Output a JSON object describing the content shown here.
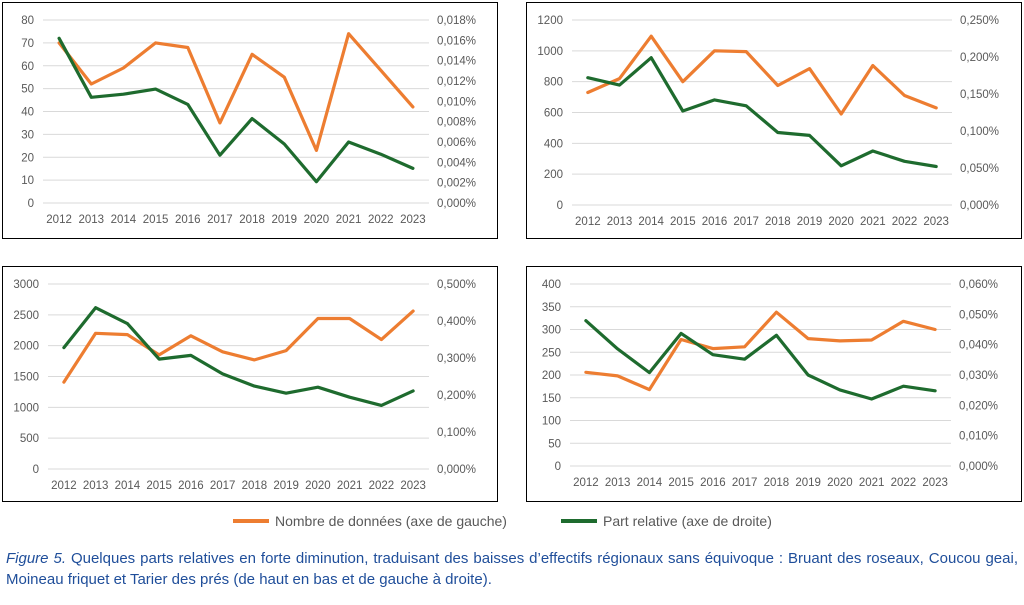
{
  "colors": {
    "series_left": "#ed7d31",
    "series_right": "#1e6b2e",
    "grid": "#d9d9d9",
    "tick": "#595959",
    "caption": "#1f4e9a"
  },
  "legend": {
    "left_label": "Nombre de données (axe de gauche)",
    "right_label": "Part relative (axe de droite)"
  },
  "caption": {
    "figure_label": "Figure 5.",
    "text": " Quelques parts relatives en forte diminution, traduisant des baisses d’effectifs régionaux sans équivoque : Bruant des roseaux, Coucou geai, Moineau friquet et Tarier des prés (de haut en bas et de gauche à droite)."
  },
  "chart_data": [
    {
      "type": "line",
      "x": [
        "2012",
        "2013",
        "2014",
        "2015",
        "2016",
        "2017",
        "2018",
        "2019",
        "2020",
        "2021",
        "2022",
        "2023"
      ],
      "series": [
        {
          "name": "Nombre de données (axe de gauche)",
          "axis": "left",
          "values": [
            70,
            52,
            59,
            70,
            68,
            35,
            65,
            55,
            23,
            74,
            58,
            42
          ]
        },
        {
          "name": "Part relative (axe de droite)",
          "axis": "right",
          "values": [
            0.0162,
            0.0104,
            0.0107,
            0.0112,
            0.0097,
            0.0047,
            0.0083,
            0.0058,
            0.0021,
            0.006,
            0.0048,
            0.0034
          ]
        }
      ],
      "ylim_left": [
        0,
        80
      ],
      "yticks_left": [
        "0",
        "10",
        "20",
        "30",
        "40",
        "50",
        "60",
        "70",
        "80"
      ],
      "ylim_right": [
        0,
        0.018
      ],
      "yticks_right": [
        "0,000%",
        "0,002%",
        "0,004%",
        "0,006%",
        "0,008%",
        "0,010%",
        "0,012%",
        "0,014%",
        "0,016%",
        "0,018%"
      ],
      "grid": true
    },
    {
      "type": "line",
      "x": [
        "2012",
        "2013",
        "2014",
        "2015",
        "2016",
        "2017",
        "2018",
        "2019",
        "2020",
        "2021",
        "2022",
        "2023"
      ],
      "series": [
        {
          "name": "Nombre de données (axe de gauche)",
          "axis": "left",
          "values": [
            730,
            820,
            1095,
            800,
            1000,
            995,
            775,
            885,
            590,
            905,
            710,
            630
          ]
        },
        {
          "name": "Part relative (axe de droite)",
          "axis": "right",
          "values": [
            0.172,
            0.162,
            0.199,
            0.127,
            0.142,
            0.134,
            0.098,
            0.094,
            0.053,
            0.073,
            0.059,
            0.052
          ]
        }
      ],
      "ylim_left": [
        0,
        1200
      ],
      "yticks_left": [
        "0",
        "200",
        "400",
        "600",
        "800",
        "1000",
        "1200"
      ],
      "ylim_right": [
        0,
        0.25
      ],
      "yticks_right": [
        "0,000%",
        "0,050%",
        "0,100%",
        "0,150%",
        "0,200%",
        "0,250%"
      ],
      "grid": true
    },
    {
      "type": "line",
      "x": [
        "2012",
        "2013",
        "2014",
        "2015",
        "2016",
        "2017",
        "2018",
        "2019",
        "2020",
        "2021",
        "2022",
        "2023"
      ],
      "series": [
        {
          "name": "Nombre de données (axe de gauche)",
          "axis": "left",
          "values": [
            1410,
            2200,
            2180,
            1850,
            2160,
            1900,
            1770,
            1920,
            2440,
            2440,
            2100,
            2560
          ]
        },
        {
          "name": "Part relative (axe de droite)",
          "axis": "right",
          "values": [
            0.328,
            0.436,
            0.393,
            0.297,
            0.307,
            0.257,
            0.224,
            0.205,
            0.221,
            0.194,
            0.172,
            0.211
          ]
        }
      ],
      "ylim_left": [
        0,
        3000
      ],
      "yticks_left": [
        "0",
        "500",
        "1000",
        "1500",
        "2000",
        "2500",
        "3000"
      ],
      "ylim_right": [
        0,
        0.5
      ],
      "yticks_right": [
        "0,000%",
        "0,100%",
        "0,200%",
        "0,300%",
        "0,400%",
        "0,500%"
      ],
      "grid": true
    },
    {
      "type": "line",
      "x": [
        "2012",
        "2013",
        "2014",
        "2015",
        "2016",
        "2017",
        "2018",
        "2019",
        "2020",
        "2021",
        "2022",
        "2023"
      ],
      "series": [
        {
          "name": "Nombre de données (axe de gauche)",
          "axis": "left",
          "values": [
            206,
            198,
            168,
            278,
            258,
            262,
            338,
            280,
            275,
            277,
            318,
            300
          ]
        },
        {
          "name": "Part relative (axe de droite)",
          "axis": "right",
          "values": [
            0.0479,
            0.0386,
            0.0308,
            0.0437,
            0.0367,
            0.0352,
            0.0431,
            0.03,
            0.0251,
            0.0221,
            0.0263,
            0.0248
          ]
        }
      ],
      "ylim_left": [
        0,
        400
      ],
      "yticks_left": [
        "0",
        "50",
        "100",
        "150",
        "200",
        "250",
        "300",
        "350",
        "400"
      ],
      "ylim_right": [
        0,
        0.06
      ],
      "yticks_right": [
        "0,000%",
        "0,010%",
        "0,020%",
        "0,030%",
        "0,040%",
        "0,050%",
        "0,060%"
      ],
      "grid": true
    }
  ]
}
